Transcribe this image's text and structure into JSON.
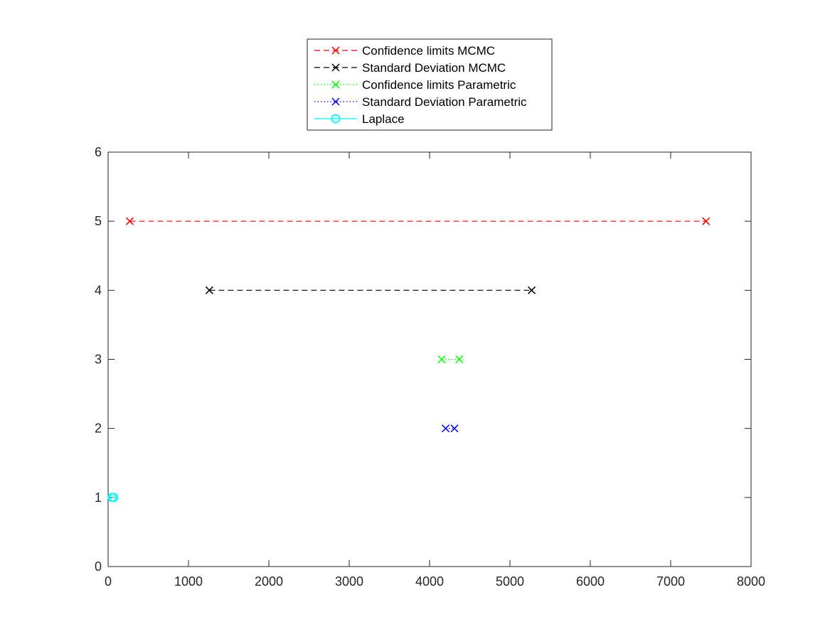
{
  "chart_data": {
    "type": "line",
    "xlim": [
      0,
      8000
    ],
    "ylim": [
      0,
      6
    ],
    "x_ticks": [
      0,
      1000,
      2000,
      3000,
      4000,
      5000,
      6000,
      7000,
      8000
    ],
    "y_ticks": [
      0,
      1,
      2,
      3,
      4,
      5,
      6
    ],
    "x_tick_labels": [
      "0",
      "1000",
      "2000",
      "3000",
      "4000",
      "5000",
      "6000",
      "7000",
      "8000"
    ],
    "y_tick_labels": [
      "0",
      "1",
      "2",
      "3",
      "4",
      "5",
      "6"
    ],
    "grid": false,
    "legend_position": "top-center-outside",
    "series": [
      {
        "name": "Confidence limits MCMC",
        "color": "#ff0000",
        "line_style": "dashed",
        "marker": "x",
        "x": [
          270,
          7440
        ],
        "y": [
          5,
          5
        ]
      },
      {
        "name": "Standard Deviation MCMC",
        "color": "#000000",
        "line_style": "dashed",
        "marker": "x",
        "x": [
          1260,
          5270
        ],
        "y": [
          4,
          4
        ]
      },
      {
        "name": "Confidence limits Parametric",
        "color": "#00ff00",
        "line_style": "dotted",
        "marker": "x",
        "x": [
          4150,
          4370
        ],
        "y": [
          3,
          3
        ]
      },
      {
        "name": "Standard Deviation Parametric",
        "color": "#0000ff",
        "line_style": "dotted",
        "marker": "x",
        "x": [
          4200,
          4310
        ],
        "y": [
          2,
          2
        ]
      },
      {
        "name": "Laplace",
        "color": "#00ffff",
        "line_style": "solid",
        "marker": "o",
        "x": [
          50,
          70
        ],
        "y": [
          1,
          1
        ]
      }
    ]
  }
}
